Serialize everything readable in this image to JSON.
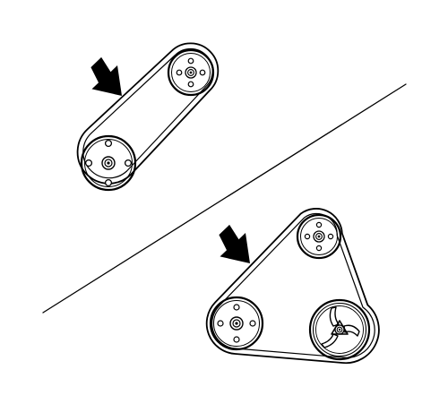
{
  "diagram": {
    "style": "black line art on white",
    "ink_color": "#000000",
    "background_color": "#ffffff",
    "panels": [
      {
        "id": "two-pulley-layout",
        "pulleys": [
          "crankshaft-pulley",
          "upper-pulley"
        ],
        "belt": "drive-belt",
        "callout": "arrow-icon"
      },
      {
        "id": "three-pulley-layout",
        "pulleys": [
          "crankshaft-pulley",
          "upper-pulley",
          "tensioner-pulley"
        ],
        "belt": "drive-belt",
        "callout": "arrow-icon"
      }
    ],
    "divider": "diagonal-divider-line"
  }
}
